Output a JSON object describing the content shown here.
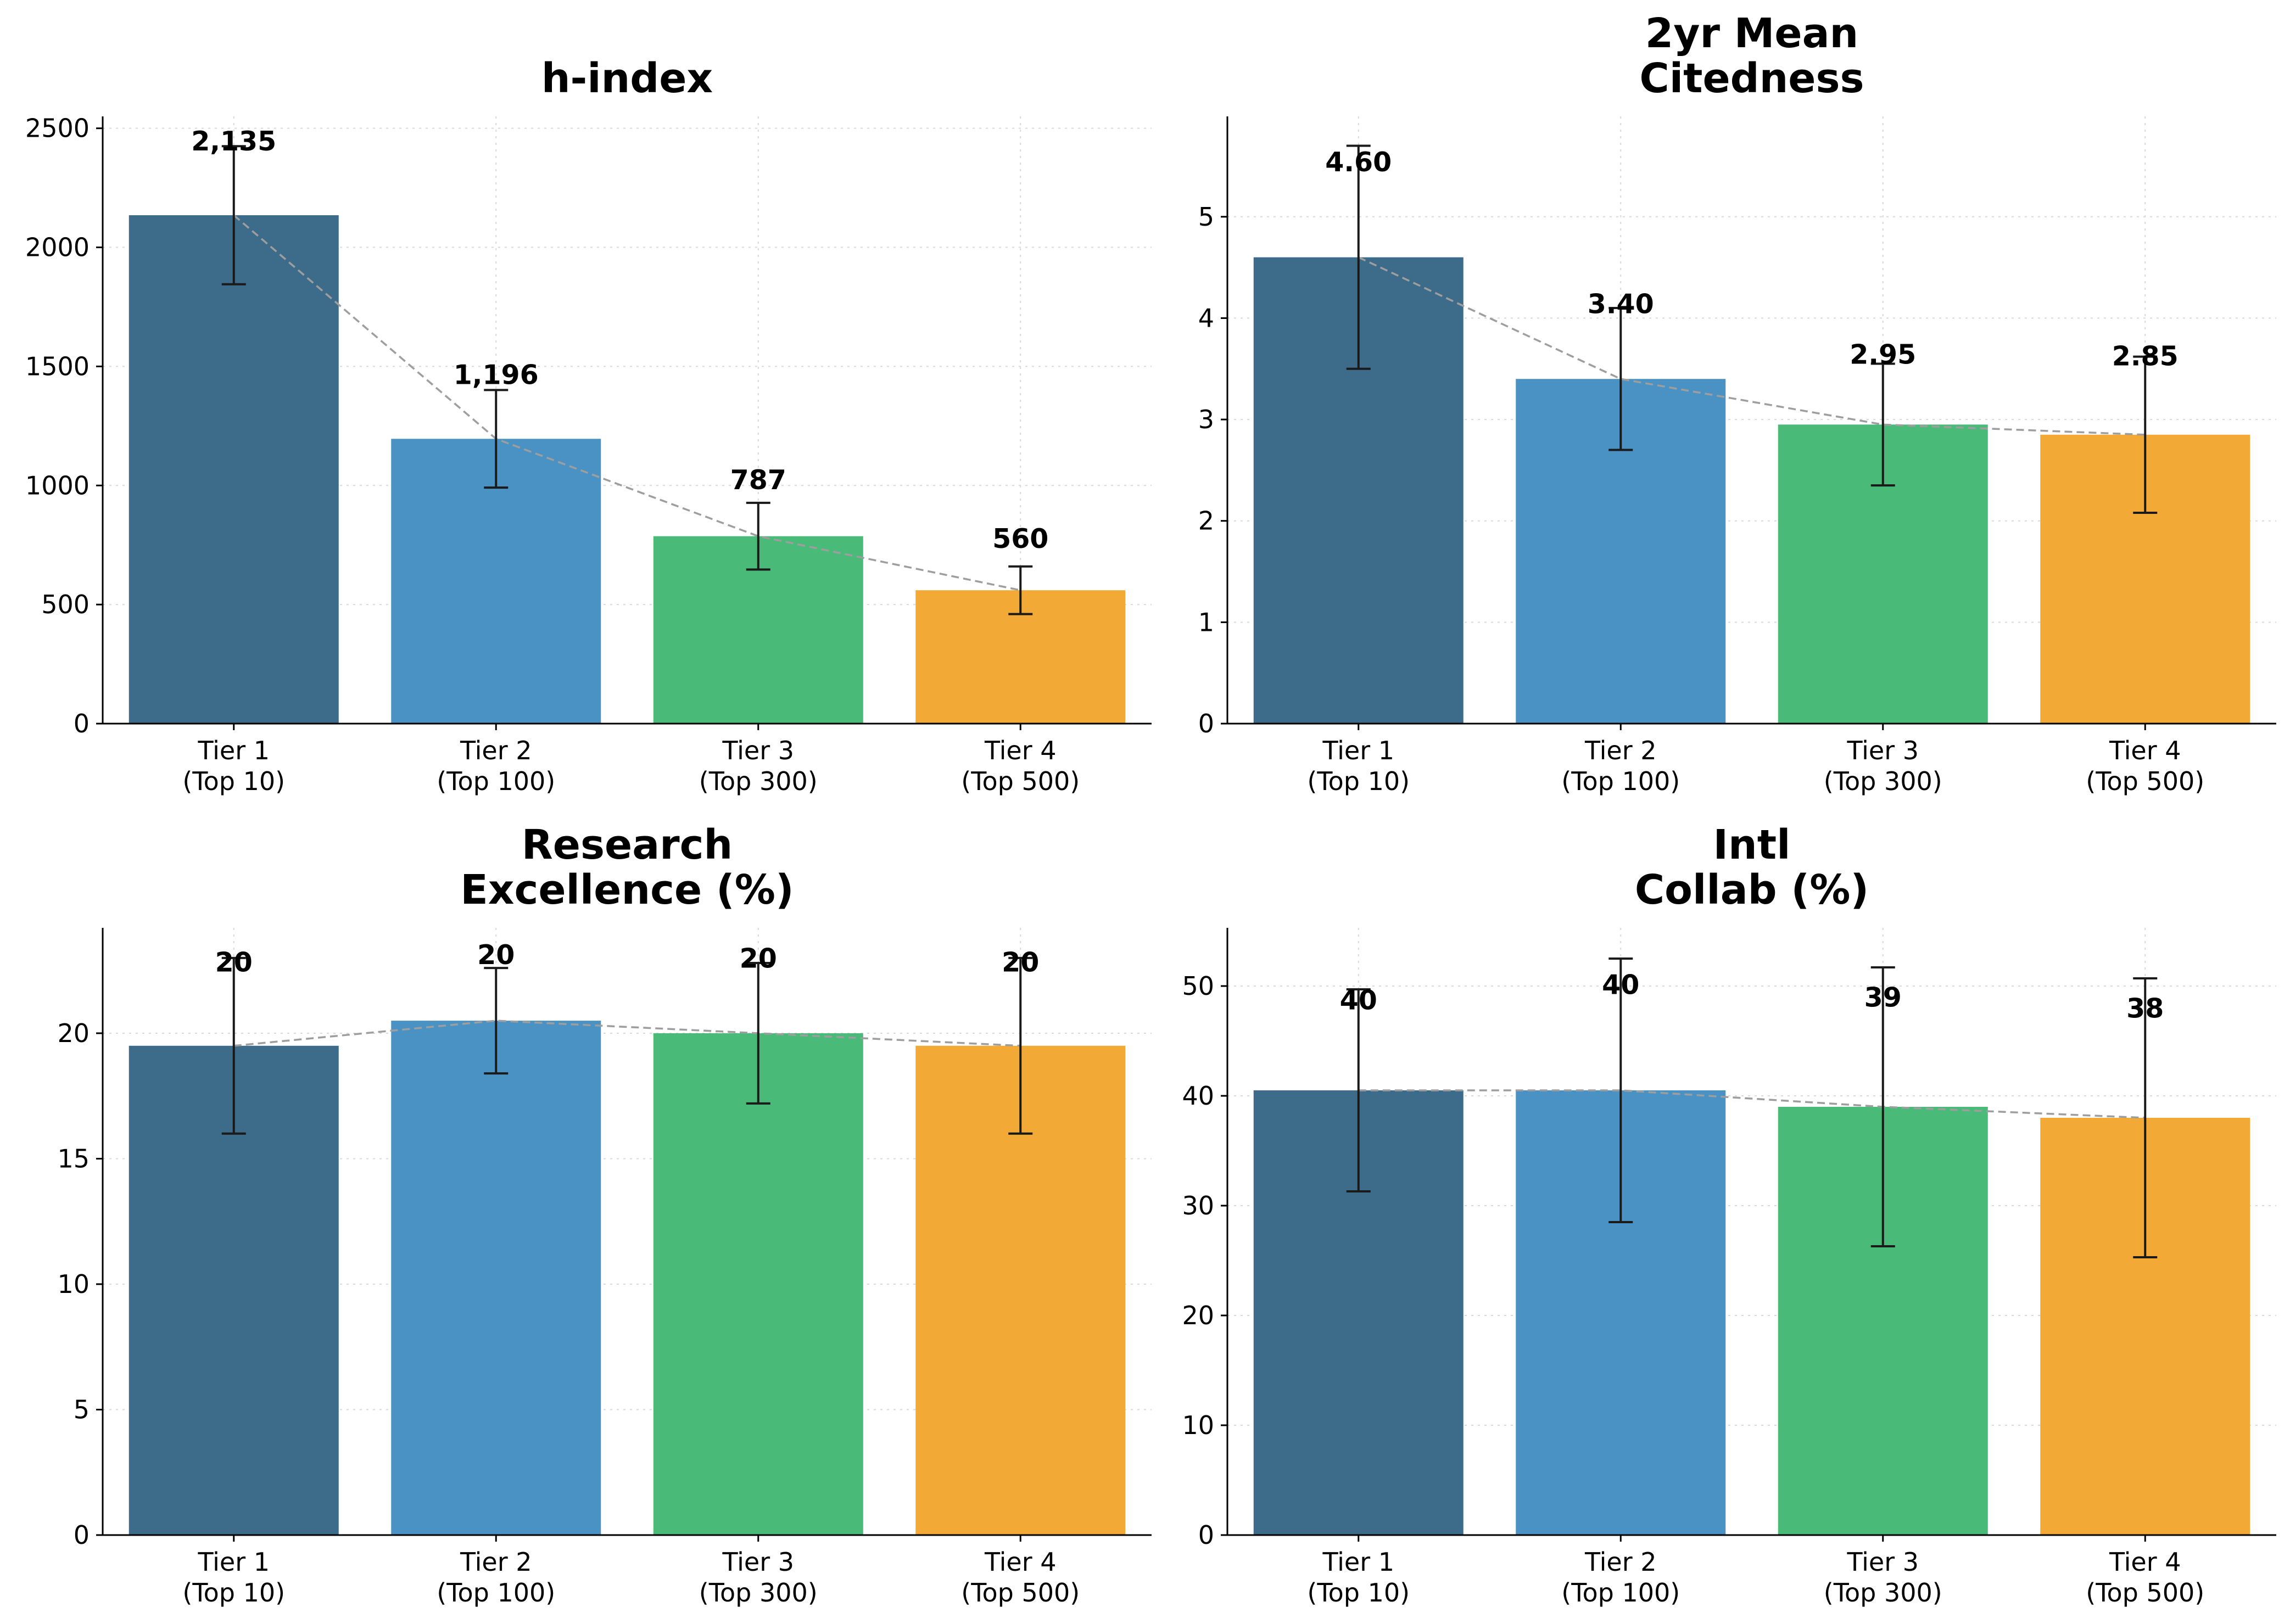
{
  "chart_data": [
    {
      "type": "bar",
      "title": "h-index",
      "categories": [
        [
          "Tier 1",
          "(Top 10)"
        ],
        [
          "Tier 2",
          "(Top 100)"
        ],
        [
          "Tier 3",
          "(Top 300)"
        ],
        [
          "Tier 4",
          "(Top 500)"
        ]
      ],
      "values": [
        2135,
        1196,
        787,
        560
      ],
      "errors": [
        290,
        205,
        140,
        100
      ],
      "value_labels": [
        "2,135",
        "1,196",
        "787",
        "560"
      ],
      "colors": [
        "#3d6b8a",
        "#4a92c3",
        "#49ba78",
        "#f2a935"
      ],
      "ylim": [
        0,
        2550
      ],
      "yticks": [
        0,
        500,
        1000,
        1500,
        2000,
        2500
      ],
      "ytick_labels": [
        "0",
        "500",
        "1000",
        "1500",
        "2000",
        "2500"
      ],
      "xlabel": "",
      "ylabel": "",
      "trend_line": true
    },
    {
      "type": "bar",
      "title": [
        "2yr Mean",
        "Citedness"
      ],
      "categories": [
        [
          "Tier 1",
          "(Top 10)"
        ],
        [
          "Tier 2",
          "(Top 100)"
        ],
        [
          "Tier 3",
          "(Top 300)"
        ],
        [
          "Tier 4",
          "(Top 500)"
        ]
      ],
      "values": [
        4.6,
        3.4,
        2.95,
        2.85
      ],
      "errors": [
        1.1,
        0.7,
        0.6,
        0.77
      ],
      "value_labels": [
        "4.60",
        "3.40",
        "2.95",
        "2.85"
      ],
      "colors": [
        "#3d6b8a",
        "#4a92c3",
        "#49ba78",
        "#f2a935"
      ],
      "ylim": [
        0,
        5.99
      ],
      "yticks": [
        0,
        1,
        2,
        3,
        4,
        5
      ],
      "ytick_labels": [
        "0",
        "1",
        "2",
        "3",
        "4",
        "5"
      ],
      "xlabel": "",
      "ylabel": "",
      "trend_line": true
    },
    {
      "type": "bar",
      "title": [
        "Research",
        "Excellence (%)"
      ],
      "categories": [
        [
          "Tier 1",
          "(Top 10)"
        ],
        [
          "Tier 2",
          "(Top 100)"
        ],
        [
          "Tier 3",
          "(Top 300)"
        ],
        [
          "Tier 4",
          "(Top 500)"
        ]
      ],
      "values": [
        19.5,
        20.5,
        20.0,
        19.5
      ],
      "errors": [
        3.5,
        2.1,
        2.8,
        3.5
      ],
      "value_labels": [
        "20",
        "20",
        "20",
        "20"
      ],
      "colors": [
        "#3d6b8a",
        "#4a92c3",
        "#49ba78",
        "#f2a935"
      ],
      "ylim": [
        0,
        24.2
      ],
      "yticks": [
        0,
        5,
        10,
        15,
        20
      ],
      "ytick_labels": [
        "0",
        "5",
        "10",
        "15",
        "20"
      ],
      "xlabel": "",
      "ylabel": "",
      "trend_line": true
    },
    {
      "type": "bar",
      "title": [
        "Intl",
        "Collab (%)"
      ],
      "categories": [
        [
          "Tier 1",
          "(Top 10)"
        ],
        [
          "Tier 2",
          "(Top 100)"
        ],
        [
          "Tier 3",
          "(Top 300)"
        ],
        [
          "Tier 4",
          "(Top 500)"
        ]
      ],
      "values": [
        40.5,
        40.5,
        39.0,
        38.0
      ],
      "errors": [
        9.2,
        12.0,
        12.7,
        12.7
      ],
      "value_labels": [
        "40",
        "40",
        "39",
        "38"
      ],
      "colors": [
        "#3d6b8a",
        "#4a92c3",
        "#49ba78",
        "#f2a935"
      ],
      "ylim": [
        0,
        55.3
      ],
      "yticks": [
        0,
        10,
        20,
        30,
        40,
        50
      ],
      "ytick_labels": [
        "0",
        "10",
        "20",
        "30",
        "40",
        "50"
      ],
      "xlabel": "",
      "ylabel": "",
      "trend_line": true
    }
  ]
}
